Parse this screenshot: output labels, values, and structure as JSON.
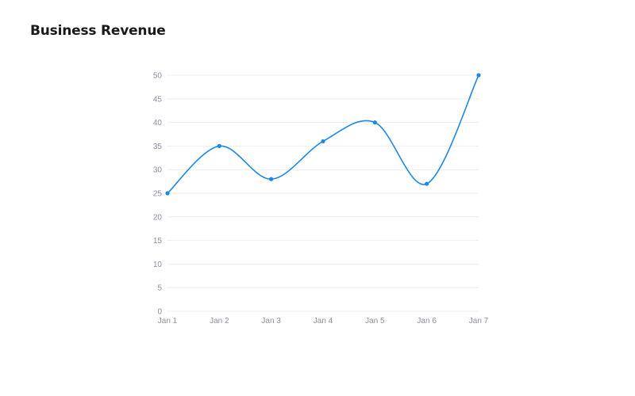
{
  "page": {
    "title": "Business Revenue"
  },
  "chart_data": {
    "type": "line",
    "title": "Business Revenue",
    "xlabel": "",
    "ylabel": "",
    "categories": [
      "Jan 1",
      "Jan 2",
      "Jan 3",
      "Jan 4",
      "Jan 5",
      "Jan 6",
      "Jan 7"
    ],
    "series": [
      {
        "values": [
          25,
          35,
          28,
          36,
          40,
          27,
          50
        ],
        "color": "#1e88e5"
      }
    ],
    "ylim": [
      0,
      50
    ],
    "yticks": [
      "0",
      "5",
      "10",
      "15",
      "20",
      "25",
      "30",
      "35",
      "40",
      "45",
      "50"
    ],
    "grid": true,
    "legend": "none",
    "smooth": true
  }
}
